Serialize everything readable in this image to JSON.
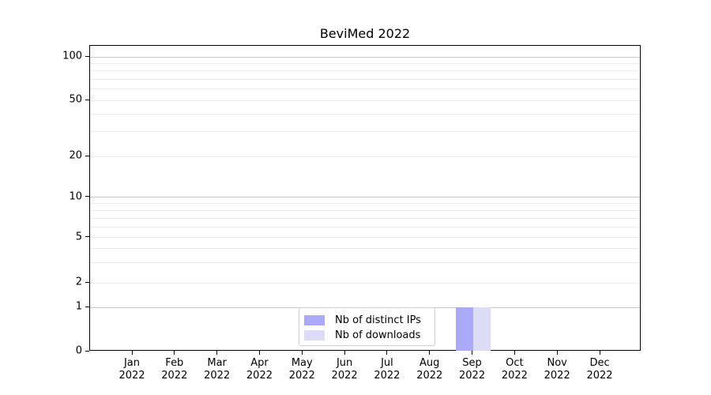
{
  "chart_data": {
    "type": "bar",
    "title": "BeviMed 2022",
    "months": [
      "Jan",
      "Feb",
      "Mar",
      "Apr",
      "May",
      "Jun",
      "Jul",
      "Aug",
      "Sep",
      "Oct",
      "Nov",
      "Dec"
    ],
    "year": "2022",
    "categories": [
      "Jan 2022",
      "Feb 2022",
      "Mar 2022",
      "Apr 2022",
      "May 2022",
      "Jun 2022",
      "Jul 2022",
      "Aug 2022",
      "Sep 2022",
      "Oct 2022",
      "Nov 2022",
      "Dec 2022"
    ],
    "series": [
      {
        "name": "Nb of distinct IPs",
        "color": "#aaaaf8",
        "values": [
          0,
          0,
          0,
          0,
          0,
          0,
          0,
          0,
          1,
          0,
          0,
          0
        ]
      },
      {
        "name": "Nb of downloads",
        "color": "#dcdcf7",
        "values": [
          0,
          0,
          0,
          0,
          0,
          0,
          0,
          0,
          1,
          0,
          0,
          0
        ]
      }
    ],
    "yaxis": {
      "scale": "log-like with 0 baseline",
      "ticks": [
        0,
        1,
        2,
        5,
        10,
        20,
        50,
        100
      ],
      "tick_labels": [
        "0",
        "1",
        "2",
        "5",
        "10",
        "20",
        "50",
        "100"
      ],
      "major_gridline_values": [
        1,
        10,
        100
      ],
      "minor_gridline_values": [
        2,
        3,
        4,
        5,
        6,
        7,
        8,
        9,
        20,
        30,
        40,
        50,
        60,
        70,
        80,
        90
      ],
      "ylim": [
        0,
        120
      ],
      "tick_fractions": {
        "0": 1.0,
        "1": 0.8553,
        "2": 0.7752,
        "5": 0.6279,
        "10": 0.4961,
        "20": 0.3618,
        "50": 0.1783,
        "100": 0.0362
      }
    },
    "xaxis": {
      "tick_labels_two_line": true
    },
    "legend": {
      "position": "bottom-center",
      "entries": [
        "Nb of distinct IPs",
        "Nb of downloads"
      ]
    },
    "grid": "on",
    "colors": {
      "bar_distinct_ips": "#aaaaf8",
      "bar_downloads": "#dcdcf7",
      "major_grid": "#c8c8c8",
      "minor_grid": "#eaeaea",
      "axis": "#000000",
      "text": "#000000",
      "legend_border": "#cccccc"
    }
  }
}
